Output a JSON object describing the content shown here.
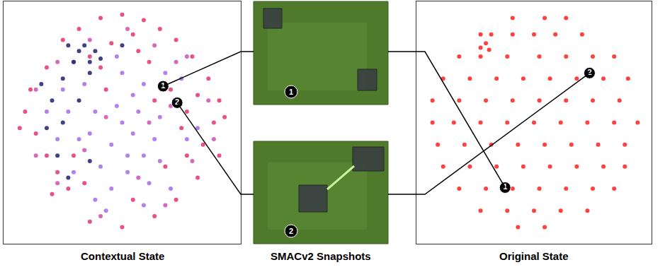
{
  "chart_data": [
    {
      "type": "scatter",
      "title": "Contextual State",
      "xlim": [
        -1.1,
        1.1
      ],
      "ylim": [
        -1.1,
        1.1
      ],
      "tick_labels": false,
      "grid": false,
      "series": [
        {
          "color": "#e5336e",
          "marker": "circle",
          "points": [
            [
              -0.2,
              0.95
            ],
            [
              0.0,
              0.98
            ],
            [
              0.2,
              0.93
            ],
            [
              0.35,
              0.85
            ],
            [
              -0.4,
              0.85
            ],
            [
              -0.55,
              0.75
            ],
            [
              0.5,
              0.75
            ],
            [
              0.1,
              0.8
            ],
            [
              -0.1,
              0.72
            ],
            [
              0.65,
              0.6
            ],
            [
              0.8,
              0.4
            ],
            [
              0.9,
              0.2
            ],
            [
              0.85,
              0.0
            ],
            [
              0.75,
              -0.2
            ],
            [
              0.6,
              0.1
            ],
            [
              0.55,
              -0.05
            ],
            [
              0.7,
              0.25
            ],
            [
              0.45,
              0.3
            ],
            [
              0.9,
              -0.3
            ],
            [
              0.7,
              -0.5
            ],
            [
              0.5,
              -0.7
            ],
            [
              0.3,
              -0.85
            ],
            [
              0.0,
              -0.95
            ],
            [
              -0.3,
              -0.9
            ],
            [
              -0.5,
              -0.6
            ],
            [
              -0.6,
              -0.45
            ],
            [
              -0.7,
              -0.3
            ],
            [
              -0.8,
              -0.1
            ],
            [
              -0.9,
              0.1
            ],
            [
              -0.85,
              0.3
            ],
            [
              -0.7,
              0.5
            ],
            [
              -0.45,
              -0.3
            ],
            [
              -0.35,
              -0.55
            ],
            [
              -0.2,
              0.5
            ],
            [
              0.25,
              0.55
            ],
            [
              0.4,
              -0.4
            ],
            [
              0.1,
              -0.7
            ],
            [
              -0.65,
              -0.65
            ],
            [
              0.3,
              0.2
            ],
            [
              -0.15,
              0.3
            ],
            [
              0.6,
              -0.3
            ],
            [
              0.95,
              0.05
            ],
            [
              -0.95,
              -0.05
            ],
            [
              0.15,
              0.65
            ],
            [
              -0.3,
              0.6
            ]
          ]
        },
        {
          "color": "#a66be8",
          "marker": "circle",
          "points": [
            [
              0.0,
              0.0
            ],
            [
              0.1,
              -0.1
            ],
            [
              -0.1,
              -0.2
            ],
            [
              0.2,
              -0.3
            ],
            [
              -0.2,
              -0.4
            ],
            [
              0.05,
              -0.45
            ],
            [
              -0.3,
              -0.1
            ],
            [
              0.3,
              -0.15
            ],
            [
              0.15,
              0.1
            ],
            [
              -0.05,
              0.15
            ],
            [
              -0.25,
              0.1
            ],
            [
              0.35,
              0.05
            ],
            [
              -0.4,
              -0.15
            ],
            [
              0.25,
              -0.55
            ],
            [
              -0.1,
              -0.6
            ],
            [
              -0.5,
              0.1
            ],
            [
              0.4,
              0.45
            ],
            [
              0.2,
              0.35
            ],
            [
              -0.35,
              0.35
            ],
            [
              0.0,
              0.45
            ],
            [
              -0.6,
              -0.15
            ],
            [
              -0.15,
              -0.8
            ],
            [
              0.45,
              -0.6
            ],
            [
              0.55,
              0.4
            ],
            [
              -0.55,
              0.3
            ],
            [
              0.05,
              -0.3
            ],
            [
              -0.25,
              -0.7
            ],
            [
              0.6,
              -0.15
            ],
            [
              0.35,
              -0.35
            ],
            [
              -0.45,
              -0.45
            ],
            [
              0.1,
              0.25
            ],
            [
              -0.7,
              0.1
            ],
            [
              0.2,
              -0.75
            ],
            [
              -0.05,
              0.6
            ],
            [
              0.7,
              -0.05
            ]
          ]
        },
        {
          "color": "#d04fb0",
          "marker": "circle",
          "points": [
            [
              -0.3,
              0.75
            ],
            [
              0.3,
              0.7
            ],
            [
              0.5,
              0.55
            ],
            [
              -0.6,
              0.55
            ],
            [
              0.8,
              0.2
            ],
            [
              -0.8,
              0.3
            ],
            [
              0.65,
              -0.35
            ],
            [
              -0.6,
              -0.55
            ],
            [
              0.4,
              -0.75
            ],
            [
              -0.2,
              -0.85
            ],
            [
              0.05,
              0.85
            ],
            [
              -0.8,
              -0.3
            ],
            [
              0.85,
              -0.15
            ],
            [
              0.15,
              -0.5
            ],
            [
              -0.35,
              -0.25
            ],
            [
              0.45,
              0.15
            ],
            [
              -0.15,
              0.05
            ],
            [
              0.25,
              0.0
            ],
            [
              -0.45,
              0.55
            ],
            [
              0.6,
              0.6
            ]
          ]
        },
        {
          "color": "#1e1e70",
          "marker": "circle",
          "points": [
            [
              -0.4,
              0.65
            ],
            [
              -0.3,
              0.55
            ],
            [
              -0.35,
              0.7
            ],
            [
              -0.25,
              0.65
            ],
            [
              -0.45,
              0.55
            ],
            [
              -0.2,
              0.58
            ],
            [
              -0.5,
              0.7
            ],
            [
              -0.3,
              0.45
            ],
            [
              -0.55,
              0.4
            ],
            [
              -0.65,
              0.2
            ],
            [
              -0.7,
              -0.05
            ],
            [
              -0.6,
              -0.3
            ],
            [
              -0.5,
              -0.5
            ],
            [
              -0.75,
              0.35
            ],
            [
              -0.4,
              0.2
            ],
            [
              -0.55,
              0.0
            ],
            [
              -0.3,
              -0.35
            ],
            [
              0.0,
              0.7
            ]
          ]
        }
      ],
      "highlights": [
        {
          "label": "1",
          "x": 0.38,
          "y": 0.33
        },
        {
          "label": "2",
          "x": 0.51,
          "y": 0.18
        }
      ]
    },
    {
      "type": "scatter",
      "title": "Original State",
      "xlim": [
        -1.1,
        1.1
      ],
      "ylim": [
        -1.1,
        1.1
      ],
      "tick_labels": false,
      "grid": false,
      "series": [
        {
          "color": "#ff1f1f",
          "marker": "circle",
          "points": [
            [
              -0.2,
              0.95
            ],
            [
              0.1,
              0.95
            ],
            [
              0.3,
              0.95
            ],
            [
              -0.5,
              0.8
            ],
            [
              -0.4,
              0.8
            ],
            [
              -0.2,
              0.8
            ],
            [
              0.0,
              0.8
            ],
            [
              0.2,
              0.8
            ],
            [
              0.45,
              0.8
            ],
            [
              -0.7,
              0.6
            ],
            [
              -0.5,
              0.6
            ],
            [
              -0.25,
              0.6
            ],
            [
              0.05,
              0.6
            ],
            [
              0.3,
              0.6
            ],
            [
              0.55,
              0.6
            ],
            [
              0.75,
              0.6
            ],
            [
              -0.85,
              0.4
            ],
            [
              -0.6,
              0.4
            ],
            [
              -0.35,
              0.4
            ],
            [
              -0.1,
              0.4
            ],
            [
              0.15,
              0.4
            ],
            [
              0.4,
              0.4
            ],
            [
              0.65,
              0.4
            ],
            [
              0.88,
              0.4
            ],
            [
              -0.95,
              0.2
            ],
            [
              -0.7,
              0.2
            ],
            [
              -0.45,
              0.2
            ],
            [
              -0.2,
              0.2
            ],
            [
              0.05,
              0.2
            ],
            [
              0.3,
              0.2
            ],
            [
              0.55,
              0.2
            ],
            [
              0.8,
              0.2
            ],
            [
              -0.95,
              0.0
            ],
            [
              -0.75,
              0.0
            ],
            [
              -0.5,
              0.0
            ],
            [
              -0.25,
              0.0
            ],
            [
              0.0,
              0.0
            ],
            [
              0.25,
              0.0
            ],
            [
              0.5,
              0.0
            ],
            [
              0.75,
              0.0
            ],
            [
              0.97,
              0.0
            ],
            [
              -0.9,
              -0.2
            ],
            [
              -0.65,
              -0.2
            ],
            [
              -0.4,
              -0.2
            ],
            [
              -0.15,
              -0.2
            ],
            [
              0.1,
              -0.2
            ],
            [
              0.35,
              -0.2
            ],
            [
              0.6,
              -0.2
            ],
            [
              0.85,
              -0.2
            ],
            [
              -0.85,
              -0.4
            ],
            [
              -0.6,
              -0.4
            ],
            [
              -0.35,
              -0.4
            ],
            [
              -0.1,
              -0.4
            ],
            [
              0.15,
              -0.4
            ],
            [
              0.4,
              -0.4
            ],
            [
              0.65,
              -0.4
            ],
            [
              0.85,
              -0.4
            ],
            [
              -0.7,
              -0.6
            ],
            [
              -0.45,
              -0.6
            ],
            [
              -0.2,
              -0.6
            ],
            [
              0.05,
              -0.6
            ],
            [
              0.3,
              -0.6
            ],
            [
              0.55,
              -0.6
            ],
            [
              0.75,
              -0.6
            ],
            [
              -0.5,
              -0.8
            ],
            [
              -0.25,
              -0.8
            ],
            [
              0.0,
              -0.8
            ],
            [
              0.25,
              -0.8
            ],
            [
              0.5,
              -0.8
            ],
            [
              -0.15,
              -0.95
            ],
            [
              0.1,
              -0.95
            ],
            [
              -0.45,
              0.72
            ],
            [
              -0.5,
              0.68
            ],
            [
              -0.42,
              0.66
            ]
          ]
        }
      ],
      "highlights": [
        {
          "label": "1",
          "x": -0.27,
          "y": -0.59
        },
        {
          "label": "2",
          "x": 0.52,
          "y": 0.45
        }
      ]
    }
  ],
  "snapshots": {
    "title": "SMACv2 Snapshots",
    "items": [
      "1",
      "2"
    ]
  }
}
